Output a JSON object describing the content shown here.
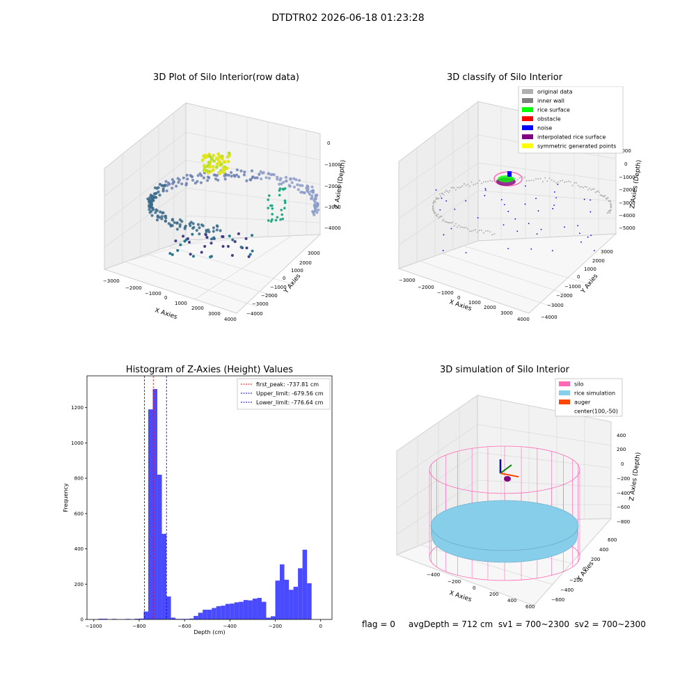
{
  "suptitle": "DTDTR02 2026-06-18 01:23:28",
  "status_line": "flag = 0     avgDepth = 712 cm  sv1 = 700~2300  sv2 = 700~2300",
  "colors": {
    "hist_bar": "#4a4aff",
    "first_peak": "#ff0000",
    "limits": "#0000cc",
    "silo": "#ff69b4",
    "rice": "#87ceeb",
    "auger": "#ff4500"
  },
  "chart_data": [
    {
      "type": "scatter",
      "subtype": "3d",
      "title": "3D Plot of Silo Interior(row data)",
      "xlabel": "X Axies",
      "ylabel": "Y Axies",
      "zlabel": "Z Axies (Depth)",
      "x_ticks": [
        "−3000",
        "−2000",
        "−1000",
        "0",
        "1000",
        "2000",
        "3000",
        "4000"
      ],
      "y_ticks": [
        "3000",
        "2000",
        "1000",
        "0",
        "−1000",
        "−2000",
        "−3000",
        "−4000"
      ],
      "z_ticks": [
        "0",
        "−1000",
        "−2000",
        "−3000",
        "−4000"
      ],
      "grid": true
    },
    {
      "type": "scatter",
      "subtype": "3d",
      "title": "3D classify of Silo Interior",
      "xlabel": "X Axies",
      "ylabel": "Y Axies",
      "zlabel": "Z Axies (Depth)",
      "x_ticks": [
        "−3000",
        "−2000",
        "−1000",
        "0",
        "1000",
        "2000",
        "3000",
        "4000"
      ],
      "y_ticks": [
        "3000",
        "2000",
        "1000",
        "0",
        "−1000",
        "−2000",
        "−3000",
        "−4000"
      ],
      "z_ticks": [
        "1000",
        "0",
        "−1000",
        "−2000",
        "−3000",
        "−4000",
        "−5000"
      ],
      "legend_position": "top-right",
      "legend": [
        {
          "label": "original data",
          "color": "#b0b0b0"
        },
        {
          "label": "inner wall",
          "color": "#808080"
        },
        {
          "label": "rice surface",
          "color": "#00ff00"
        },
        {
          "label": "obstacle",
          "color": "#ff0000"
        },
        {
          "label": "noise",
          "color": "#0000ff"
        },
        {
          "label": "interpolated rice surface",
          "color": "#800080"
        },
        {
          "label": "symmetric generated points",
          "color": "#ffff00"
        }
      ],
      "grid": true
    },
    {
      "type": "bar",
      "subtype": "histogram",
      "title": "Histogram of Z-Axies (Height) Values",
      "xlabel": "Depth (cm)",
      "ylabel": "Frequency",
      "xlim": [
        -1030,
        50
      ],
      "ylim": [
        0,
        1380
      ],
      "x_ticks": [
        -1000,
        -800,
        -600,
        -400,
        -200,
        0
      ],
      "x_tick_labels": [
        "−1000",
        "−800",
        "−600",
        "−400",
        "−200",
        "0"
      ],
      "y_ticks": [
        0,
        200,
        400,
        600,
        800,
        1000,
        1200
      ],
      "bin_width": 20,
      "bins": [
        {
          "x0": -980,
          "v": 4
        },
        {
          "x0": -960,
          "v": 4
        },
        {
          "x0": -920,
          "v": 3
        },
        {
          "x0": -860,
          "v": 3
        },
        {
          "x0": -820,
          "v": 4
        },
        {
          "x0": -800,
          "v": 5
        },
        {
          "x0": -780,
          "v": 45
        },
        {
          "x0": -760,
          "v": 1190
        },
        {
          "x0": -740,
          "v": 1305
        },
        {
          "x0": -720,
          "v": 820
        },
        {
          "x0": -700,
          "v": 485
        },
        {
          "x0": -680,
          "v": 130
        },
        {
          "x0": -660,
          "v": 10
        },
        {
          "x0": -640,
          "v": 3
        },
        {
          "x0": -620,
          "v": 3
        },
        {
          "x0": -600,
          "v": 3
        },
        {
          "x0": -580,
          "v": 5
        },
        {
          "x0": -560,
          "v": 20
        },
        {
          "x0": -540,
          "v": 38
        },
        {
          "x0": -520,
          "v": 55
        },
        {
          "x0": -500,
          "v": 55
        },
        {
          "x0": -480,
          "v": 65
        },
        {
          "x0": -460,
          "v": 75
        },
        {
          "x0": -440,
          "v": 78
        },
        {
          "x0": -420,
          "v": 88
        },
        {
          "x0": -400,
          "v": 90
        },
        {
          "x0": -380,
          "v": 97
        },
        {
          "x0": -360,
          "v": 100
        },
        {
          "x0": -340,
          "v": 110
        },
        {
          "x0": -320,
          "v": 108
        },
        {
          "x0": -300,
          "v": 118
        },
        {
          "x0": -280,
          "v": 122
        },
        {
          "x0": -260,
          "v": 100
        },
        {
          "x0": -240,
          "v": 10
        },
        {
          "x0": -220,
          "v": 18
        },
        {
          "x0": -200,
          "v": 220
        },
        {
          "x0": -180,
          "v": 312
        },
        {
          "x0": -160,
          "v": 225
        },
        {
          "x0": -140,
          "v": 168
        },
        {
          "x0": -120,
          "v": 185
        },
        {
          "x0": -100,
          "v": 290
        },
        {
          "x0": -80,
          "v": 395
        },
        {
          "x0": -60,
          "v": 205
        }
      ],
      "vlines": [
        {
          "label": "first_peak: -737.81 cm",
          "x": -737.81,
          "color": "#ff0000"
        },
        {
          "label": "Upper_limit: -679.56 cm",
          "x": -679.56,
          "color": "#0000cc"
        },
        {
          "label": "Lower_limit: -776.64 cm",
          "x": -776.64,
          "color": "#0000cc"
        }
      ],
      "legend_position": "top-right"
    },
    {
      "type": "scatter",
      "subtype": "3d-simulation",
      "title": "3D simulation of Silo Interior",
      "xlabel": "X Axies",
      "ylabel": "Y Axies",
      "zlabel": "Z Axies (Depth)",
      "x_ticks": [
        "−400",
        "−200",
        "0",
        "200",
        "400",
        "600"
      ],
      "y_ticks": [
        "600",
        "400",
        "200",
        "0",
        "−200",
        "−400",
        "−600"
      ],
      "z_ticks": [
        "400",
        "200",
        "0",
        "−200",
        "−400",
        "−600",
        "−800"
      ],
      "legend_position": "top-right",
      "legend": [
        {
          "label": "silo",
          "color": "#ff69b4"
        },
        {
          "label": "rice simulation",
          "color": "#87ceeb"
        },
        {
          "label": "auger",
          "color": "#ff4500"
        },
        {
          "label": "center(100,-50)",
          "color": ""
        }
      ],
      "grid": true
    }
  ]
}
